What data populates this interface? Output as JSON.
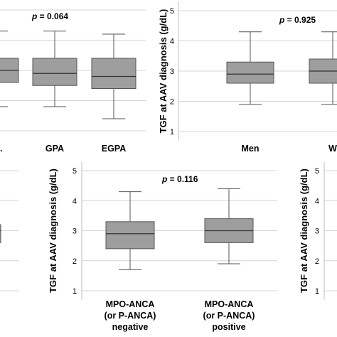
{
  "chart_data": [
    {
      "type": "box",
      "panel": "top-left",
      "ylabel": "",
      "ylim": [
        0.7,
        5.3
      ],
      "annotation": "p = 0.064",
      "annotation_p": "p",
      "annotation_rest": " = 0.064",
      "categories": [
        "",
        "GPA",
        "EGPA"
      ],
      "boxes": [
        {
          "category": "",
          "min": 1.8,
          "q1": 2.6,
          "median": 3.0,
          "q3": 3.4,
          "max": 4.3
        },
        {
          "category": "GPA",
          "min": 1.8,
          "q1": 2.5,
          "median": 2.9,
          "q3": 3.4,
          "max": 4.3
        },
        {
          "category": "EGPA",
          "min": 1.4,
          "q1": 2.4,
          "median": 2.8,
          "q3": 3.4,
          "max": 4.2
        }
      ]
    },
    {
      "type": "box",
      "panel": "top-right",
      "ylabel": "TGF at AAV diagnosis (g/dL)",
      "yticks": [
        "1",
        "2",
        "3",
        "4",
        "5"
      ],
      "ylim": [
        0.7,
        5.3
      ],
      "annotation": "p = 0.925",
      "annotation_p": "p",
      "annotation_rest": " = 0.925",
      "categories": [
        "Men",
        "W"
      ],
      "boxes": [
        {
          "category": "Men",
          "min": 1.9,
          "q1": 2.6,
          "median": 2.9,
          "q3": 3.3,
          "max": 4.3
        },
        {
          "category": "W",
          "min": 1.9,
          "q1": 2.6,
          "median": 3.0,
          "q3": 3.4,
          "max": 4.3
        }
      ]
    },
    {
      "type": "box",
      "panel": "bottom-left",
      "ylabel": "",
      "ylim": [
        0.7,
        5.3
      ],
      "categories": [
        ""
      ],
      "boxes": [
        {
          "category": "",
          "min": 1.8,
          "q1": 2.6,
          "median": 3.0,
          "q3": 3.2,
          "max": 4.3
        }
      ]
    },
    {
      "type": "box",
      "panel": "bottom-middle",
      "ylabel": "TGF at AAV diagnosis (g/dL)",
      "yticks": [
        "1",
        "2",
        "3",
        "4",
        "5"
      ],
      "ylim": [
        0.7,
        5.3
      ],
      "annotation": "p = 0.116",
      "annotation_p": "p",
      "annotation_rest": " = 0.116",
      "categories": [
        "MPO-ANCA (or P-ANCA) negative",
        "MPO-ANCA (or P-ANCA) positive"
      ],
      "category_lines": [
        [
          "MPO-ANCA",
          "(or P-ANCA)",
          "negative"
        ],
        [
          "MPO-ANCA",
          "(or P-ANCA)",
          "positive"
        ]
      ],
      "boxes": [
        {
          "category": "MPO-ANCA (or P-ANCA) negative",
          "min": 1.7,
          "q1": 2.4,
          "median": 2.9,
          "q3": 3.3,
          "max": 4.3
        },
        {
          "category": "MPO-ANCA (or P-ANCA) positive",
          "min": 1.9,
          "q1": 2.6,
          "median": 3.0,
          "q3": 3.4,
          "max": 4.4
        }
      ]
    },
    {
      "type": "box",
      "panel": "bottom-right",
      "ylabel": "TGF at AAV diagnosis (g/dL)",
      "yticks": [
        "1",
        "2",
        "3",
        "4",
        "5"
      ],
      "ylim": [
        0.7,
        5.3
      ],
      "categories": [],
      "boxes": []
    }
  ]
}
